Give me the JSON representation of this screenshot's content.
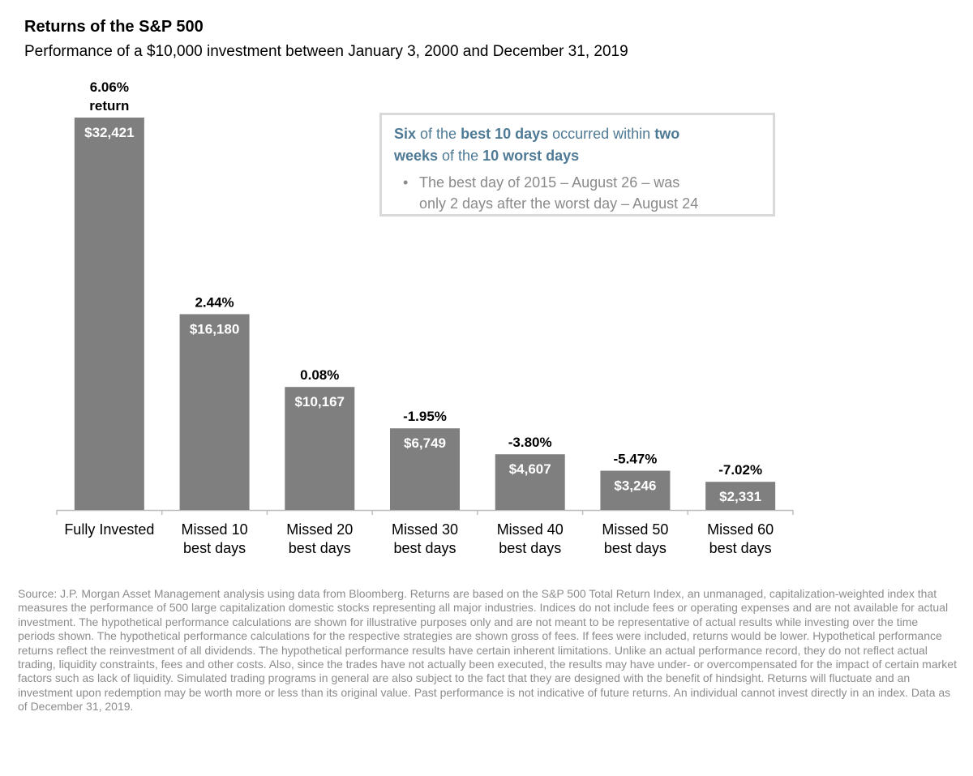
{
  "header": {
    "title": "Returns of the S&P 500",
    "subtitle": "Performance of a $10,000 investment between January 3, 2000 and December 31, 2019"
  },
  "callout": {
    "head_parts": [
      "Six",
      " of the ",
      "best 10 days",
      " occurred within ",
      "two",
      "weeks",
      " of the ",
      "10 worst days"
    ],
    "bullet_symbol": "•",
    "bullet_line1": "The best day of 2015 – August 26 – was",
    "bullet_line2": "only 2 days after the worst day – August 24"
  },
  "chart_data": {
    "type": "bar",
    "title": "Returns of the S&P 500",
    "categories": [
      [
        "Fully Invested"
      ],
      [
        "Missed 10",
        "best days"
      ],
      [
        "Missed 20",
        "best days"
      ],
      [
        "Missed 30",
        "best days"
      ],
      [
        "Missed 40",
        "best days"
      ],
      [
        "Missed 50",
        "best days"
      ],
      [
        "Missed 60",
        "best days"
      ]
    ],
    "values": [
      32421,
      16180,
      10167,
      6749,
      4607,
      3246,
      2331
    ],
    "value_labels": [
      "$32,421",
      "$16,180",
      "$10,167",
      "$6,749",
      "$4,607",
      "$3,246",
      "$2,331"
    ],
    "return_labels": [
      [
        "6.06%",
        "return"
      ],
      [
        "2.44%"
      ],
      [
        "0.08%"
      ],
      [
        "-1.95%"
      ],
      [
        "-3.80%"
      ],
      [
        "-5.47%"
      ],
      [
        "-7.02%"
      ]
    ],
    "ylim": [
      0,
      32421
    ],
    "xlabel": "",
    "ylabel": "",
    "bar_color": "#7f7f7f",
    "axis_color": "#bfbfbf"
  },
  "source_note": "Source: J.P. Morgan Asset Management analysis using data from Bloomberg. Returns are based on the S&P 500 Total Return Index, an unmanaged, capitalization-weighted index that measures the performance of 500 large capitalization domestic stocks representing all major industries. Indices do not include fees or operating expenses and are not available for actual investment. The hypothetical performance calculations are shown for illustrative purposes only and are not meant to be representative of actual results while investing over the time periods shown. The hypothetical performance calculations for the respective strategies are shown gross of fees. If fees were included, returns would be lower. Hypothetical performance returns reflect the reinvestment of all dividends. The hypothetical performance results have certain inherent limitations. Unlike an actual performance record, they do not reflect actual trading, liquidity constraints, fees and other costs. Also, since the trades have not actually been executed, the results may have under- or overcompensated for the impact of certain market factors such as lack of liquidity. Simulated trading programs in general are also subject to the fact that they are designed with the benefit of hindsight. Returns will fluctuate and an investment upon redemption may be worth more or less than its original value. Past performance is not indicative of future returns. An individual cannot invest directly in an index. Data as of December 31, 2019."
}
